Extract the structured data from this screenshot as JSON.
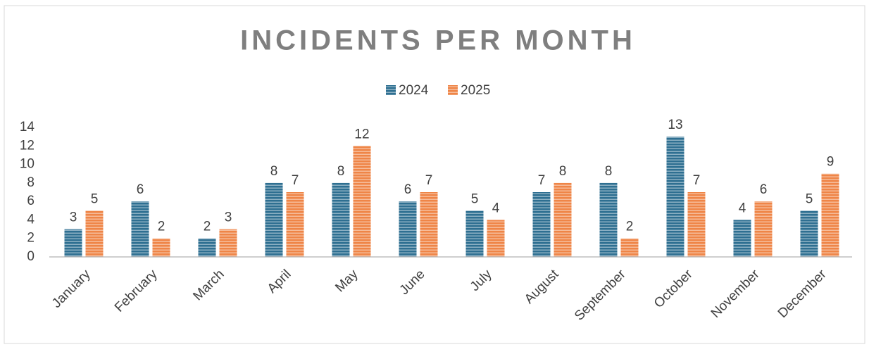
{
  "chart_data": {
    "type": "bar",
    "title": "INCIDENTS PER MONTH",
    "categories": [
      "January",
      "February",
      "March",
      "April",
      "May",
      "June",
      "July",
      "August",
      "September",
      "October",
      "November",
      "December"
    ],
    "series": [
      {
        "name": "2024",
        "color": "#2e6f91",
        "values": [
          3,
          6,
          2,
          8,
          8,
          6,
          5,
          7,
          8,
          13,
          4,
          5
        ]
      },
      {
        "name": "2025",
        "color": "#ef8547",
        "values": [
          5,
          2,
          3,
          7,
          12,
          7,
          4,
          8,
          2,
          7,
          6,
          9
        ]
      }
    ],
    "ylim": [
      0,
      14
    ],
    "yticks": [
      0,
      2,
      4,
      6,
      8,
      10,
      12,
      14
    ],
    "grid": false,
    "legend": "top"
  }
}
